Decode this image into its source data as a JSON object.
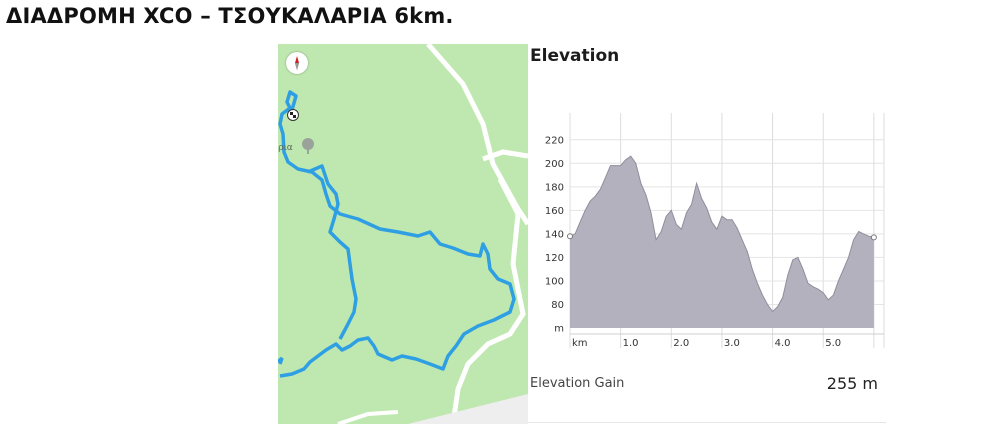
{
  "page": {
    "title": "ΔΙΑΔΡΟΜΗ XCO – ΤΣΟΥΚΑΛΑΡΙΑ 6km."
  },
  "map": {
    "poi_label": "ρια",
    "compass_icon": "compass-icon",
    "start_icon": "checkered-flag-icon",
    "poi_icon": "tree-poi-icon"
  },
  "colors": {
    "route": "#2f9fe3",
    "map_bg": "#bfe8b0",
    "area_fill": "#b2b1bd",
    "area_stroke": "#8f8e9c"
  },
  "chart_data": {
    "type": "area",
    "title": "Elevation",
    "xlabel": "",
    "ylabel": "",
    "x_unit_label": "km",
    "y_unit_label": "m",
    "xlim": [
      0,
      6.2
    ],
    "ylim": [
      60,
      230
    ],
    "y_ticks": [
      "220",
      "200",
      "180",
      "160",
      "140",
      "120",
      "100",
      "80"
    ],
    "x_ticks": [
      "km",
      "1.0",
      "2.0",
      "3.0",
      "4.0",
      "5.0"
    ],
    "x": [
      0,
      0.1,
      0.2,
      0.3,
      0.4,
      0.5,
      0.6,
      0.7,
      0.8,
      0.9,
      1.0,
      1.1,
      1.2,
      1.3,
      1.4,
      1.5,
      1.6,
      1.7,
      1.8,
      1.9,
      2.0,
      2.1,
      2.2,
      2.3,
      2.4,
      2.5,
      2.6,
      2.7,
      2.8,
      2.9,
      3.0,
      3.1,
      3.2,
      3.3,
      3.4,
      3.5,
      3.6,
      3.7,
      3.8,
      3.9,
      4.0,
      4.1,
      4.2,
      4.3,
      4.4,
      4.5,
      4.6,
      4.7,
      4.8,
      4.9,
      5.0,
      5.1,
      5.2,
      5.3,
      5.4,
      5.5,
      5.6,
      5.7,
      5.8,
      5.9,
      6.0
    ],
    "series": [
      {
        "values": [
          138,
          140,
          150,
          160,
          168,
          172,
          178,
          188,
          198,
          198,
          198,
          203,
          206,
          200,
          183,
          173,
          158,
          135,
          142,
          155,
          160,
          148,
          144,
          158,
          165,
          183,
          170,
          162,
          150,
          144,
          155,
          152,
          152,
          145,
          135,
          125,
          110,
          98,
          88,
          80,
          74,
          78,
          86,
          105,
          118,
          120,
          110,
          98,
          95,
          93,
          90,
          84,
          88,
          100,
          110,
          120,
          135,
          142,
          140,
          138,
          137
        ]
      }
    ]
  },
  "elevation_gain": {
    "label": "Elevation Gain",
    "value": "255 m"
  }
}
